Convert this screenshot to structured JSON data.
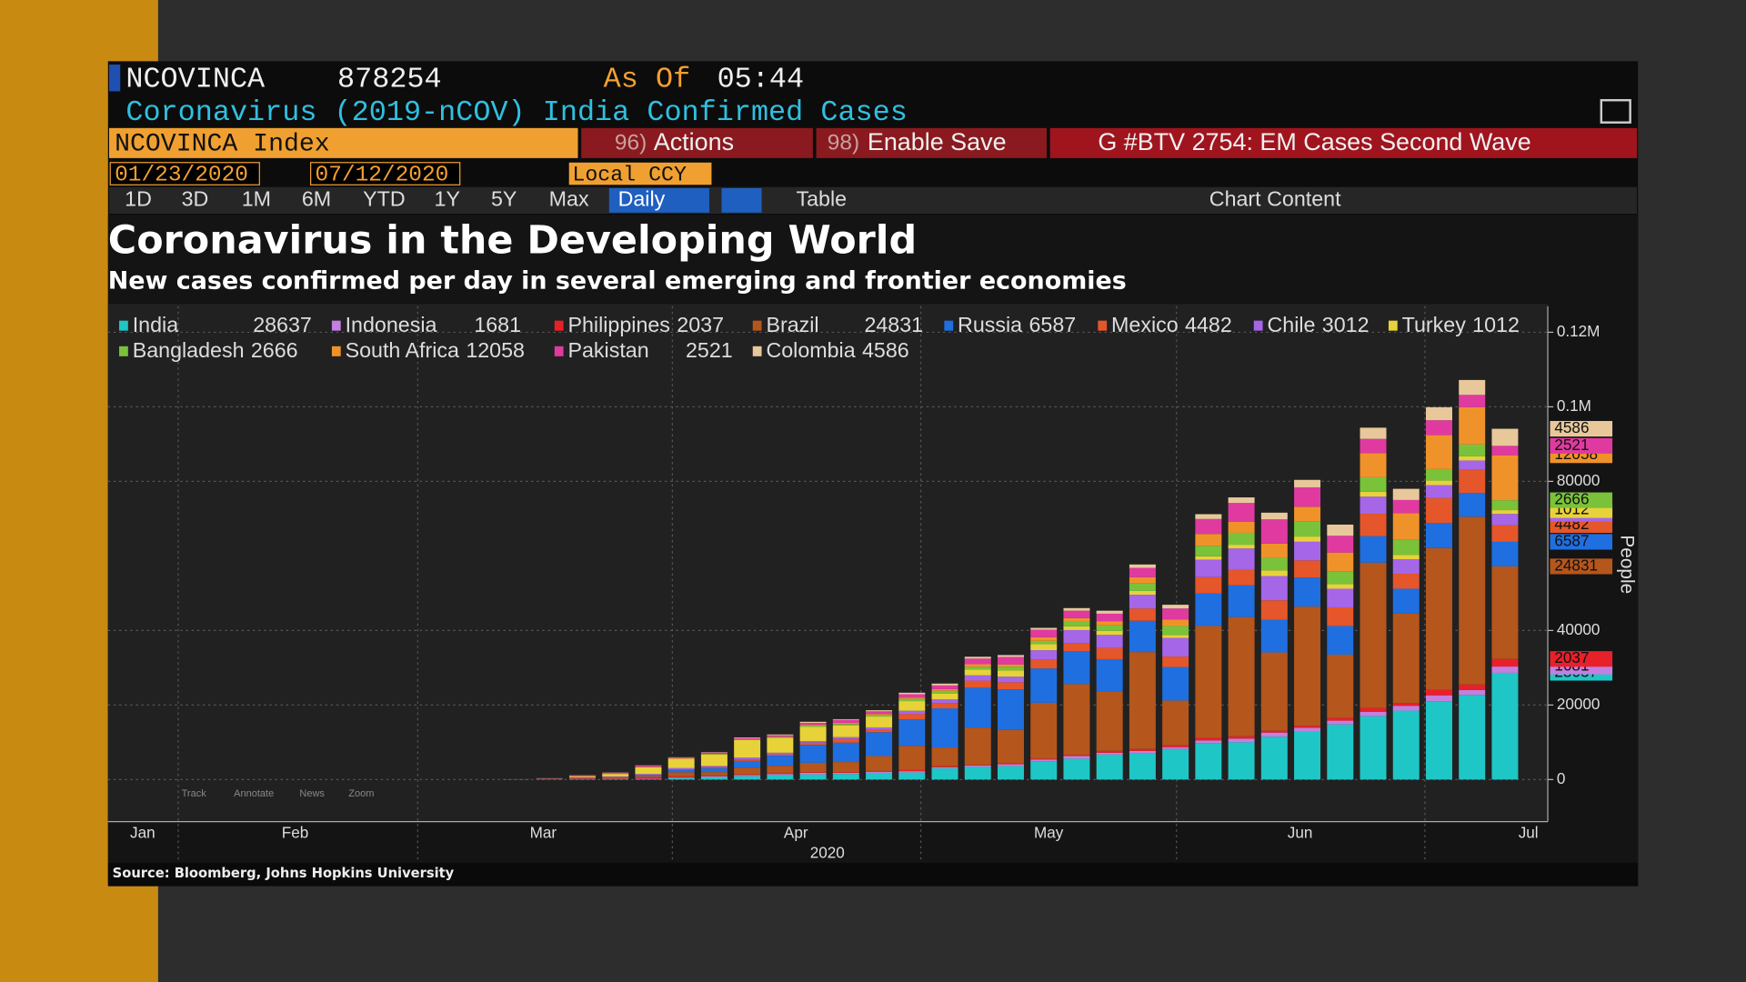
{
  "terminal": {
    "ticker": "NCOVINCA",
    "last": 878254,
    "as_of_label": "As Of",
    "time": "05:44",
    "security_title": "Coronavirus (2019-nCOV) India Confirmed Cases",
    "security": "NCOVINCA Index",
    "actions": {
      "code": "96)",
      "label": "Actions"
    },
    "save": {
      "code": "98)",
      "label": "Enable Save"
    },
    "group": "G #BTV 2754: EM Cases Second Wave",
    "start_date": "01/23/2020",
    "end_date": "07/12/2020",
    "currency": "Local CCY",
    "periods": [
      "1D",
      "3D",
      "1M",
      "6M",
      "YTD",
      "1Y",
      "5Y",
      "Max"
    ],
    "frequency": "Daily",
    "table": "Table",
    "chart_content": "Chart Content",
    "chart_tools": [
      "Track",
      "Annotate",
      "News",
      "Zoom"
    ],
    "source": "Source: Bloomberg, Johns Hopkins University"
  },
  "chart_data": {
    "type": "bar",
    "stacked": true,
    "title": "Coronavirus in the Developing World",
    "subtitle": "New cases confirmed per day in several emerging and frontier economies",
    "y_label": "People",
    "x_label": "2020",
    "categories": [
      null,
      null,
      null,
      null,
      null,
      null,
      null,
      null,
      null,
      null,
      null,
      null,
      null,
      null,
      null,
      null,
      null,
      null,
      null,
      null,
      null,
      null,
      null,
      null,
      null,
      null,
      null,
      null,
      null,
      null,
      null
    ],
    "xlim": [
      -12.4,
      31.3
    ],
    "xgrid": [
      -10.27,
      -3,
      4.73,
      12.27,
      20.03,
      27.57
    ],
    "xticks": [
      {
        "value": -11.35,
        "label": "Jan"
      },
      {
        "value": -6.72,
        "label": "Feb"
      },
      {
        "value": 0.81,
        "label": "Mar"
      },
      {
        "value": 8.48,
        "label": "Apr"
      },
      {
        "value": 16.15,
        "label": "May"
      },
      {
        "value": 23.78,
        "label": "Jun"
      },
      {
        "value": 30.71,
        "label": "Jul"
      }
    ],
    "ylim": [
      -11300,
      127000
    ],
    "yticks": [
      0,
      20000,
      40000,
      80000,
      {
        "value": 100000,
        "label": "0.1M"
      },
      {
        "value": 120000,
        "label": "0.12M"
      }
    ],
    "grid": true,
    "series": [
      {
        "name": "India",
        "color": "#1fc6c6",
        "values": [
          10,
          30,
          80,
          90,
          100,
          400,
          700,
          900,
          1200,
          1400,
          1500,
          1800,
          1900,
          3000,
          3400,
          3600,
          4900,
          5600,
          6700,
          7000,
          8200,
          9800,
          10000,
          11500,
          12900,
          14800,
          17000,
          18500,
          21000,
          22700,
          28637
        ]
      },
      {
        "name": "Indonesia",
        "color": "#c47fe0",
        "values": [
          5,
          20,
          80,
          100,
          130,
          150,
          200,
          300,
          300,
          400,
          300,
          300,
          350,
          300,
          350,
          500,
          500,
          700,
          500,
          700,
          500,
          700,
          1000,
          1100,
          1000,
          1000,
          1200,
          1300,
          1600,
          1300,
          1681
        ]
      },
      {
        "name": "Philippines",
        "color": "#e8202a",
        "values": [
          20,
          40,
          50,
          80,
          300,
          300,
          200,
          200,
          300,
          200,
          200,
          200,
          300,
          300,
          200,
          200,
          200,
          300,
          500,
          500,
          500,
          700,
          600,
          500,
          500,
          700,
          1000,
          700,
          1500,
          1500,
          2037
        ]
      },
      {
        "name": "Brazil",
        "color": "#b5561c",
        "values": [
          20,
          60,
          200,
          300,
          400,
          1100,
          900,
          1800,
          1900,
          2500,
          2700,
          4000,
          6500,
          5000,
          10000,
          9000,
          15000,
          19000,
          16000,
          26000,
          12000,
          30000,
          32000,
          21000,
          32000,
          17000,
          39000,
          24000,
          38000,
          45000,
          24831
        ]
      },
      {
        "name": "Russia",
        "color": "#1f6fe0",
        "values": [
          5,
          20,
          50,
          70,
          200,
          700,
          1100,
          1800,
          2700,
          4800,
          5200,
          6400,
          7100,
          10500,
          10700,
          10900,
          9200,
          8800,
          8600,
          8400,
          9000,
          8700,
          8500,
          8800,
          7800,
          7700,
          7100,
          6700,
          6700,
          6400,
          6587
        ]
      },
      {
        "name": "Mexico",
        "color": "#e5562a",
        "values": [
          5,
          10,
          30,
          50,
          70,
          120,
          250,
          400,
          300,
          600,
          1000,
          800,
          1400,
          1400,
          1900,
          1900,
          2400,
          2200,
          3000,
          3300,
          2800,
          4400,
          4200,
          5200,
          4600,
          5000,
          6000,
          4000,
          6700,
          6200,
          4482
        ]
      },
      {
        "name": "Chile",
        "color": "#a566e8",
        "values": [
          10,
          40,
          100,
          150,
          300,
          300,
          300,
          500,
          500,
          400,
          500,
          500,
          900,
          1000,
          1400,
          1500,
          2500,
          3500,
          3500,
          3700,
          5000,
          4700,
          5700,
          6500,
          5000,
          5000,
          4600,
          3900,
          3500,
          2500,
          3012
        ]
      },
      {
        "name": "Turkey",
        "color": "#e8d23a",
        "values": [
          5,
          50,
          300,
          600,
          1800,
          2500,
          3100,
          4700,
          4000,
          3900,
          3100,
          2900,
          2600,
          1600,
          1600,
          1700,
          1600,
          1000,
          1100,
          1000,
          800,
          900,
          1000,
          1500,
          1400,
          1200,
          1300,
          1200,
          1200,
          1100,
          1012
        ]
      },
      {
        "name": "Bangladesh",
        "color": "#7ac23a",
        "values": [
          0,
          5,
          5,
          5,
          5,
          5,
          100,
          100,
          200,
          300,
          400,
          400,
          600,
          700,
          700,
          1000,
          900,
          1200,
          1500,
          2000,
          2400,
          2800,
          3200,
          3400,
          4000,
          3500,
          3900,
          4000,
          3100,
          3200,
          2666
        ]
      },
      {
        "name": "South Africa",
        "color": "#f0922a",
        "values": [
          10,
          20,
          50,
          200,
          100,
          100,
          100,
          100,
          100,
          200,
          300,
          300,
          350,
          450,
          700,
          600,
          1000,
          1000,
          1100,
          1700,
          1700,
          3200,
          3000,
          3800,
          4000,
          5000,
          6500,
          7200,
          9100,
          10000,
          12058
        ]
      },
      {
        "name": "Pakistan",
        "color": "#e03aa0",
        "values": [
          10,
          50,
          200,
          200,
          300,
          200,
          300,
          300,
          400,
          500,
          800,
          700,
          900,
          1000,
          1500,
          2000,
          2000,
          2000,
          2000,
          2500,
          3000,
          4000,
          5000,
          6500,
          5200,
          4500,
          3800,
          3500,
          4000,
          3300,
          2521
        ]
      },
      {
        "name": "Colombia",
        "color": "#e8c89a",
        "values": [
          5,
          20,
          30,
          50,
          100,
          100,
          100,
          200,
          200,
          300,
          200,
          300,
          400,
          500,
          500,
          500,
          500,
          700,
          800,
          900,
          1000,
          1300,
          1500,
          1800,
          2000,
          3000,
          3000,
          3000,
          3500,
          4000,
          4586
        ]
      }
    ]
  }
}
